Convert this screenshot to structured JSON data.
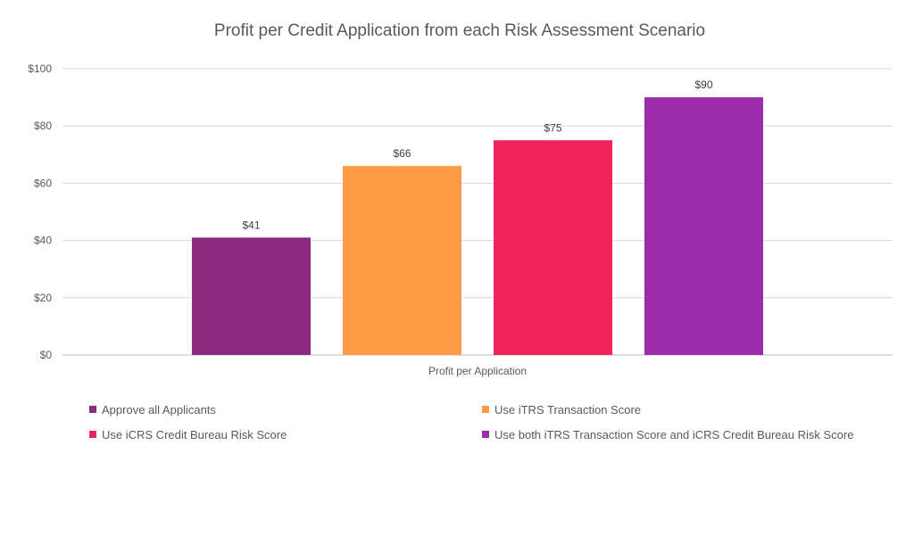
{
  "chart_data": {
    "type": "bar",
    "title": "Profit per Credit Application from each Risk Assessment Scenario",
    "categories": [
      "Profit per Application"
    ],
    "series": [
      {
        "name": "Approve all Applicants",
        "values": [
          41
        ],
        "label": "$41",
        "color": "#8B2A7E"
      },
      {
        "name": "Use iTRS Transaction Score",
        "values": [
          66
        ],
        "label": "$66",
        "color": "#FF9A45"
      },
      {
        "name": "Use iCRS Credit Bureau Risk Score",
        "values": [
          75
        ],
        "label": "$75",
        "color": "#F0235C"
      },
      {
        "name": "Use both iTRS Transaction Score and iCRS Credit Bureau Risk Score",
        "values": [
          90
        ],
        "label": "$90",
        "color": "#9B2DAA"
      }
    ],
    "ylim": [
      0,
      100
    ],
    "yticks": [
      0,
      20,
      40,
      60,
      80,
      100
    ],
    "ytick_labels": [
      "$0",
      "$20",
      "$40",
      "$60",
      "$80",
      "$100"
    ],
    "grid": true,
    "legend_position": "bottom"
  }
}
